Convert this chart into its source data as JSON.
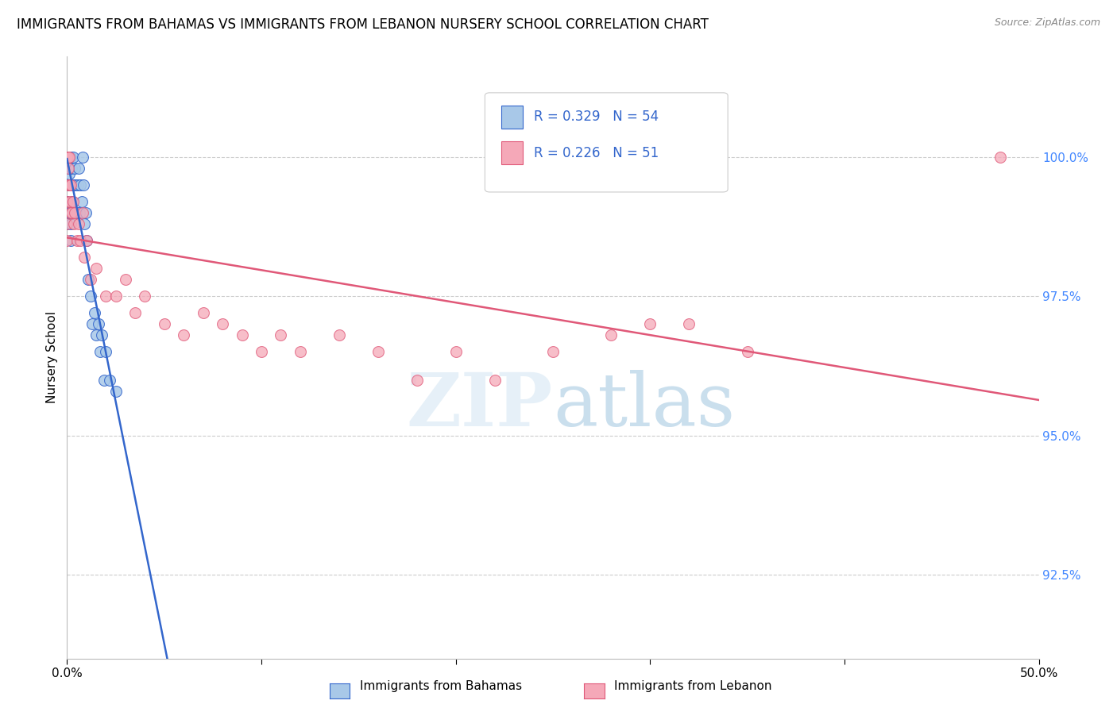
{
  "title": "IMMIGRANTS FROM BAHAMAS VS IMMIGRANTS FROM LEBANON NURSERY SCHOOL CORRELATION CHART",
  "source": "Source: ZipAtlas.com",
  "ylabel": "Nursery School",
  "yticks": [
    92.5,
    95.0,
    97.5,
    100.0
  ],
  "ytick_labels": [
    "92.5%",
    "95.0%",
    "97.5%",
    "100.0%"
  ],
  "xlim": [
    0.0,
    50.0
  ],
  "ylim": [
    91.0,
    101.8
  ],
  "legend_r1": "R = 0.329",
  "legend_n1": "N = 54",
  "legend_r2": "R = 0.226",
  "legend_n2": "N = 51",
  "series1_color": "#a8c8e8",
  "series2_color": "#f5a8b8",
  "line1_color": "#3366cc",
  "line2_color": "#e05878",
  "watermark_color": "#d0e8f8",
  "bahamas_x": [
    0.0,
    0.0,
    0.0,
    0.0,
    0.0,
    0.0,
    0.0,
    0.0,
    0.0,
    0.0,
    0.05,
    0.05,
    0.07,
    0.08,
    0.09,
    0.1,
    0.1,
    0.12,
    0.13,
    0.15,
    0.15,
    0.17,
    0.18,
    0.2,
    0.22,
    0.25,
    0.28,
    0.3,
    0.35,
    0.4,
    0.45,
    0.5,
    0.55,
    0.6,
    0.65,
    0.7,
    0.75,
    0.8,
    0.85,
    0.9,
    0.95,
    1.0,
    1.1,
    1.2,
    1.3,
    1.4,
    1.5,
    1.6,
    1.7,
    1.8,
    1.9,
    2.0,
    2.2,
    2.5
  ],
  "bahamas_y": [
    100.0,
    100.0,
    100.0,
    100.0,
    100.0,
    100.0,
    99.8,
    99.5,
    99.2,
    98.8,
    100.0,
    100.0,
    100.0,
    99.8,
    99.7,
    100.0,
    99.8,
    99.5,
    99.0,
    100.0,
    99.5,
    98.8,
    98.5,
    100.0,
    99.8,
    99.5,
    99.2,
    100.0,
    99.5,
    99.8,
    99.5,
    99.0,
    99.5,
    99.8,
    99.0,
    99.5,
    99.2,
    100.0,
    99.5,
    98.8,
    99.0,
    98.5,
    97.8,
    97.5,
    97.0,
    97.2,
    96.8,
    97.0,
    96.5,
    96.8,
    96.0,
    96.5,
    96.0,
    95.8
  ],
  "lebanon_x": [
    0.0,
    0.0,
    0.0,
    0.0,
    0.0,
    0.0,
    0.0,
    0.0,
    0.05,
    0.08,
    0.1,
    0.12,
    0.15,
    0.18,
    0.2,
    0.25,
    0.3,
    0.35,
    0.4,
    0.5,
    0.6,
    0.7,
    0.8,
    0.9,
    1.0,
    1.2,
    1.5,
    2.0,
    2.5,
    3.0,
    3.5,
    4.0,
    5.0,
    6.0,
    7.0,
    8.0,
    9.0,
    10.0,
    11.0,
    12.0,
    14.0,
    16.0,
    18.0,
    20.0,
    22.0,
    25.0,
    28.0,
    30.0,
    32.0,
    35.0,
    48.0
  ],
  "lebanon_y": [
    100.0,
    100.0,
    100.0,
    100.0,
    99.5,
    99.2,
    98.8,
    98.5,
    100.0,
    99.8,
    100.0,
    99.5,
    99.2,
    99.0,
    99.5,
    99.0,
    99.2,
    98.8,
    99.0,
    98.5,
    98.8,
    98.5,
    99.0,
    98.2,
    98.5,
    97.8,
    98.0,
    97.5,
    97.5,
    97.8,
    97.2,
    97.5,
    97.0,
    96.8,
    97.2,
    97.0,
    96.8,
    96.5,
    96.8,
    96.5,
    96.8,
    96.5,
    96.0,
    96.5,
    96.0,
    96.5,
    96.8,
    97.0,
    97.0,
    96.5,
    100.0
  ]
}
